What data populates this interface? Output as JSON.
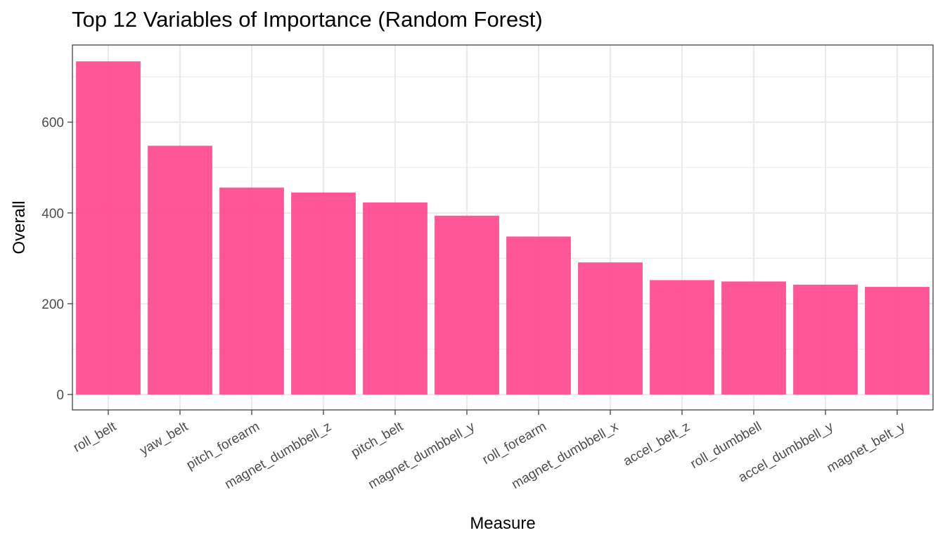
{
  "chart_data": {
    "type": "bar",
    "title": "Top 12 Variables of Importance (Random Forest)",
    "xlabel": "Measure",
    "ylabel": "Overall",
    "categories": [
      "roll_belt",
      "yaw_belt",
      "pitch_forearm",
      "magnet_dumbbell_z",
      "pitch_belt",
      "magnet_dumbbell_y",
      "roll_forearm",
      "magnet_dumbbell_x",
      "accel_belt_z",
      "roll_dumbbell",
      "accel_dumbbell_y",
      "magnet_belt_y"
    ],
    "values": [
      734,
      548,
      456,
      445,
      423,
      394,
      348,
      291,
      252,
      249,
      242,
      237
    ],
    "ylim": [
      -34,
      770
    ],
    "yticks": [
      0,
      200,
      400,
      600
    ],
    "grid": true,
    "bar_color": "#ff4d91",
    "panel_border_color": "#333333",
    "grid_color": "#ebebeb"
  }
}
